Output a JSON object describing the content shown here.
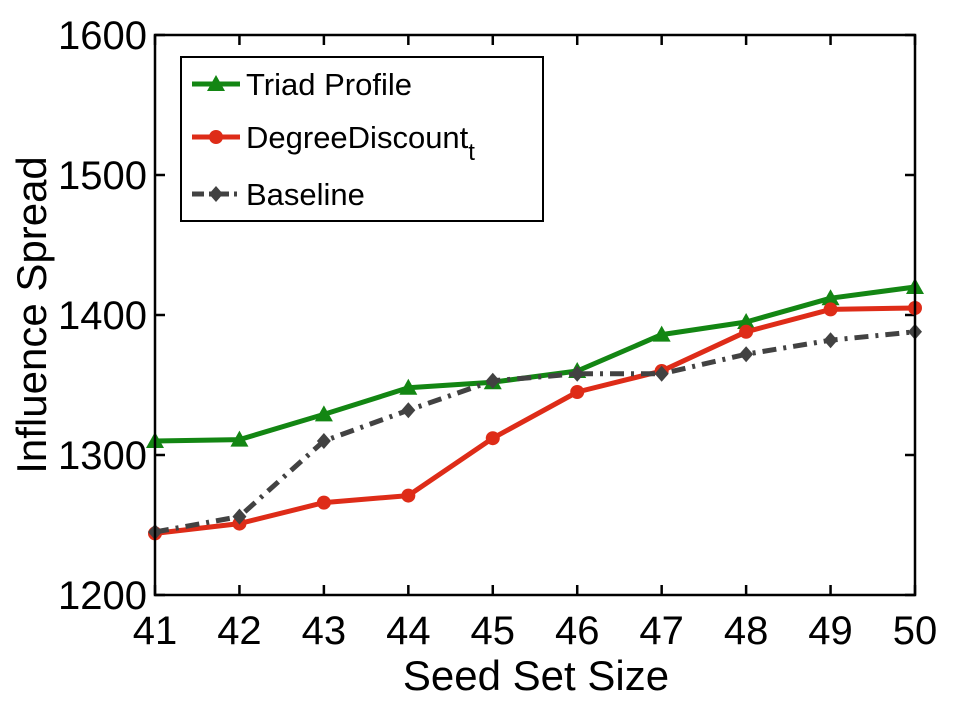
{
  "chart_data": {
    "type": "line",
    "title": "",
    "xlabel": "Seed Set Size",
    "ylabel": "Influence Spread",
    "xlim": [
      41,
      50
    ],
    "ylim": [
      1200,
      1600
    ],
    "grid": false,
    "legend_position": "top-left",
    "x": [
      41,
      42,
      43,
      44,
      45,
      46,
      47,
      48,
      49,
      50
    ],
    "x_tick_labels": [
      "41",
      "42",
      "43",
      "44",
      "45",
      "46",
      "47",
      "48",
      "49",
      "50"
    ],
    "y_ticks": [
      1200,
      1300,
      1400,
      1500,
      1600
    ],
    "y_tick_labels": [
      "1200",
      "1300",
      "1400",
      "1500",
      "1600"
    ],
    "series": [
      {
        "name": "Triad Profile",
        "legend_label": "Triad Profile",
        "legend_subscript": "",
        "color": "#138613",
        "marker": "triangle",
        "dash": "solid",
        "values": [
          1310,
          1311,
          1329,
          1348,
          1352,
          1360,
          1386,
          1395,
          1412,
          1420
        ]
      },
      {
        "name": "DegreeDiscount_t",
        "legend_label": "DegreeDiscount",
        "legend_subscript": "t",
        "color": "#de2c18",
        "marker": "circle",
        "dash": "solid",
        "values": [
          1244,
          1251,
          1266,
          1271,
          1312,
          1345,
          1360,
          1388,
          1404,
          1405
        ]
      },
      {
        "name": "Baseline",
        "legend_label": "Baseline",
        "legend_subscript": "",
        "color": "#424242",
        "marker": "diamond",
        "dash": "dashdot",
        "values": [
          1245,
          1256,
          1310,
          1332,
          1353,
          1358,
          1358,
          1372,
          1382,
          1388
        ]
      }
    ]
  }
}
